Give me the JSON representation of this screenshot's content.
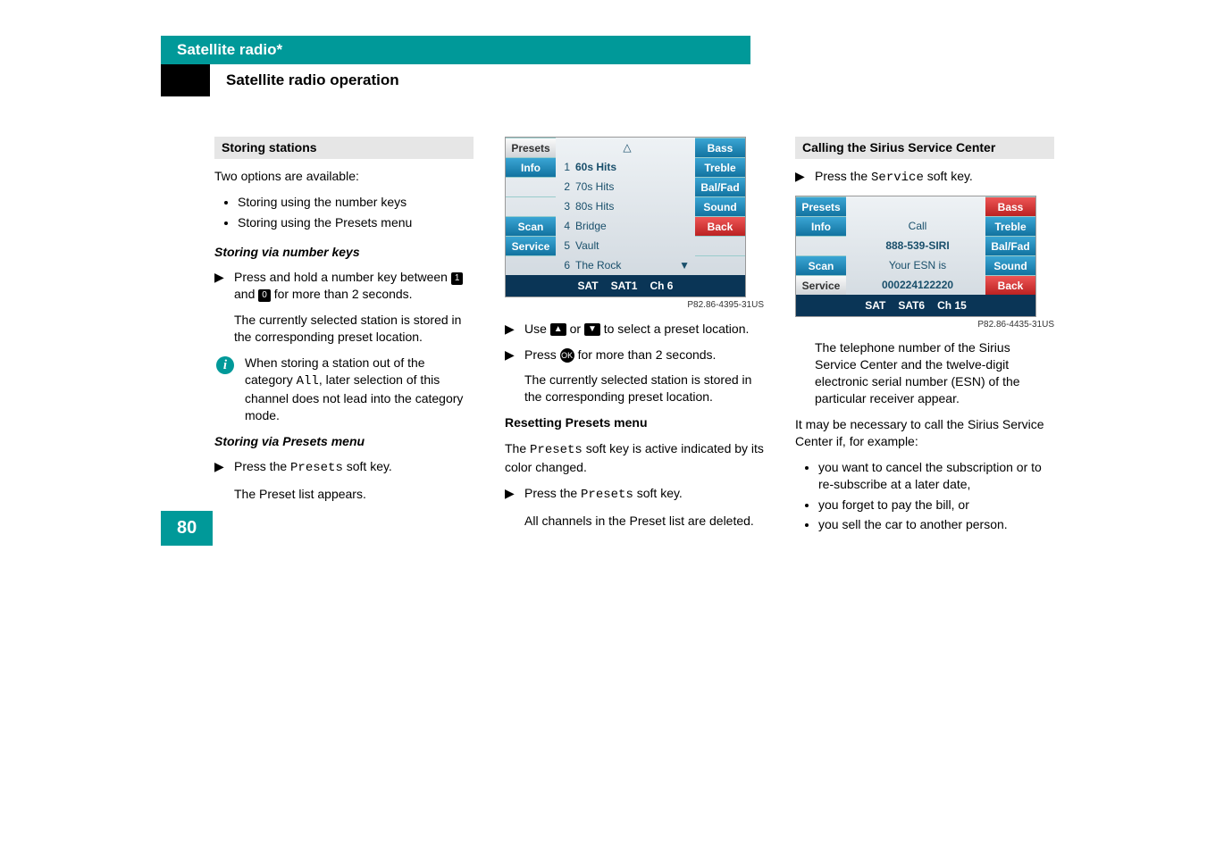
{
  "header": {
    "title": "Satellite radio*",
    "subtitle": "Satellite radio operation"
  },
  "col1": {
    "storing_header": "Storing stations",
    "intro": "Two options are available:",
    "bullets": [
      "Storing using the number keys",
      "Storing using the Presets menu"
    ],
    "via_number": "Storing via number keys",
    "number_step_a": "Press and hold a number key between",
    "number_key_1": "1",
    "number_step_b": "and",
    "number_key_0": "0",
    "number_step_c": "for more than 2 seconds.",
    "number_result": "The currently selected station is stored in the corresponding preset location.",
    "info_text_a": "When storing a station out of the category ",
    "info_all": "All",
    "info_text_b": ", later selection of this channel does not lead into the category mode.",
    "via_presets": "Storing via Presets menu",
    "presets_step_a": "Press the ",
    "presets_soft": "Presets",
    "presets_step_b": " soft key.",
    "preset_list": "The Preset list appears."
  },
  "col2": {
    "screen1": {
      "left": [
        "Presets",
        "Info",
        "",
        "Scan",
        "Service"
      ],
      "right": [
        "Bass",
        "Treble",
        "Bal/Fad",
        "Sound",
        "Back"
      ],
      "rows": [
        {
          "n": "1",
          "t": "60s Hits",
          "bold": true
        },
        {
          "n": "2",
          "t": "70s Hits"
        },
        {
          "n": "3",
          "t": "80s Hits"
        },
        {
          "n": "4",
          "t": "Bridge"
        },
        {
          "n": "5",
          "t": "Vault"
        },
        {
          "n": "6",
          "t": "The Rock"
        }
      ],
      "bottom_left": "SAT",
      "bottom_mid": "SAT1",
      "bottom_right": "Ch 6",
      "caption": "P82.86-4395-31US"
    },
    "use_a": "Use ",
    "use_up": "▲",
    "use_b": " or ",
    "use_dn": "▼",
    "use_c": " to select a preset location.",
    "press_a": "Press ",
    "press_ok": "OK",
    "press_b": " for more than 2 seconds.",
    "stored": "The currently selected station is stored in the corresponding preset location.",
    "reset_header": "Resetting Presets menu",
    "reset_intro_a": "The ",
    "reset_presets": "Presets",
    "reset_intro_b": " soft key is active indicated by its color changed.",
    "reset_step_a": "Press the ",
    "reset_presets2": "Presets",
    "reset_step_b": " soft key.",
    "reset_result": "All channels in the Preset list are deleted."
  },
  "col3": {
    "calling_header": "Calling the Sirius Service Center",
    "service_step_a": "Press the ",
    "service_soft": "Service",
    "service_step_b": " soft key.",
    "screen2": {
      "left": [
        "Presets",
        "Info",
        "",
        "Scan",
        "Service"
      ],
      "right": [
        "Bass",
        "Treble",
        "Bal/Fad",
        "Sound",
        "Back"
      ],
      "center_lines": [
        "Call",
        "888-539-SIRI",
        "Your ESN is",
        "000224122220"
      ],
      "bottom_left": "SAT",
      "bottom_mid": "SAT6",
      "bottom_right": "Ch 15",
      "caption": "P82.86-4435-31US"
    },
    "tel_para": "The telephone number of the Sirius Service Center and the twelve-digit electronic serial number (ESN) of the particular receiver appear.",
    "may_para": "It may be necessary to call the Sirius Service Center if, for example:",
    "bullets": [
      "you want to cancel the subscription or to re-subscribe at a later date,",
      "you forget to pay the bill, or",
      "you sell the car to another person."
    ]
  },
  "page_number": "80"
}
